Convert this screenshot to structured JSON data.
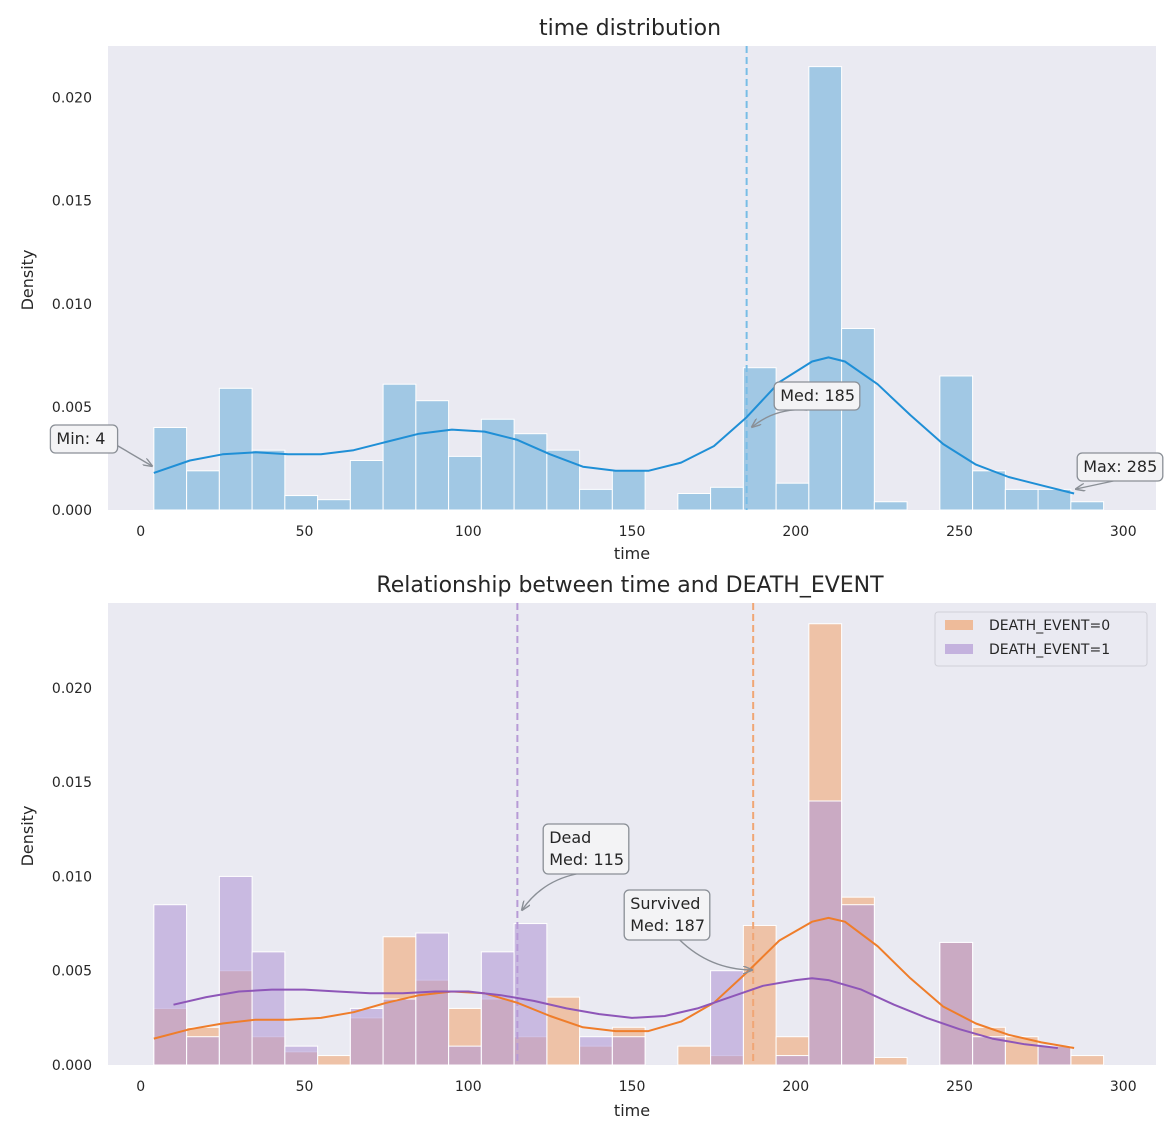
{
  "chart_data": [
    {
      "type": "bar",
      "title": "time distribution",
      "xlabel": "time",
      "ylabel": "Density",
      "xlim": [
        -10,
        310
      ],
      "ylim": [
        0,
        0.0225
      ],
      "xticks": [
        0,
        50,
        100,
        150,
        200,
        250,
        300
      ],
      "xtick_labels": [
        "0",
        "50",
        "100",
        "150",
        "200",
        "250",
        "300"
      ],
      "yticks": [
        0,
        0.005,
        0.01,
        0.015,
        0.02
      ],
      "ytick_labels": [
        "0.000",
        "0.005",
        "0.010",
        "0.015",
        "0.020"
      ],
      "grid": false,
      "bin_edges": [
        4,
        14,
        24,
        34,
        44,
        54,
        64,
        74,
        84,
        94,
        104,
        114,
        124,
        134,
        144,
        154,
        164,
        174,
        184,
        194,
        204,
        214,
        224,
        234,
        244,
        254,
        264,
        274,
        284,
        294
      ],
      "series": [
        {
          "values": [
            0.004,
            0.0019,
            0.0059,
            0.0029,
            0.0007,
            0.0005,
            0.0024,
            0.0061,
            0.0053,
            0.0026,
            0.0044,
            0.0037,
            0.0029,
            0.001,
            0.0019,
            0.0,
            0.0008,
            0.0011,
            0.0069,
            0.0013,
            0.0215,
            0.0088,
            0.0004,
            0.0,
            0.0065,
            0.0019,
            0.001,
            0.001,
            0.0004
          ],
          "color": "#8fbfe0",
          "kde": {
            "x": [
              4,
              15,
              25,
              35,
              45,
              55,
              65,
              75,
              85,
              95,
              105,
              115,
              125,
              135,
              145,
              155,
              165,
              175,
              185,
              195,
              205,
              210,
              215,
              225,
              235,
              245,
              255,
              265,
              275,
              285
            ],
            "y": [
              0.0018,
              0.0024,
              0.0027,
              0.0028,
              0.0027,
              0.0027,
              0.0029,
              0.0033,
              0.0037,
              0.0039,
              0.0038,
              0.0034,
              0.0027,
              0.0021,
              0.0019,
              0.0019,
              0.0023,
              0.0031,
              0.0045,
              0.0062,
              0.0072,
              0.0074,
              0.0072,
              0.0061,
              0.0046,
              0.0032,
              0.0022,
              0.0016,
              0.0012,
              0.0008
            ],
            "color": "#1f8fd6"
          }
        }
      ],
      "median_line": {
        "x": 185,
        "color": "#78bde6"
      },
      "annotations": [
        {
          "text": [
            "Min: 4"
          ],
          "x": 4,
          "y": 0.0021
        },
        {
          "text": [
            "Med: 185"
          ],
          "x": 185,
          "y": 0.0041
        },
        {
          "text": [
            "Max: 285"
          ],
          "x": 285,
          "y": 0.001
        }
      ]
    },
    {
      "type": "bar",
      "title": "Relationship between time and DEATH_EVENT",
      "xlabel": "time",
      "ylabel": "Density",
      "xlim": [
        -10,
        310
      ],
      "ylim": [
        0,
        0.0245
      ],
      "xticks": [
        0,
        50,
        100,
        150,
        200,
        250,
        300
      ],
      "xtick_labels": [
        "0",
        "50",
        "100",
        "150",
        "200",
        "250",
        "300"
      ],
      "yticks": [
        0,
        0.005,
        0.01,
        0.015,
        0.02
      ],
      "ytick_labels": [
        "0.000",
        "0.005",
        "0.010",
        "0.015",
        "0.020"
      ],
      "grid": false,
      "legend": {
        "placement": "top-right",
        "entries": [
          "DEATH_EVENT=0",
          "DEATH_EVENT=1"
        ]
      },
      "bin_edges": [
        4,
        14,
        24,
        34,
        44,
        54,
        64,
        74,
        84,
        94,
        104,
        114,
        124,
        134,
        144,
        154,
        164,
        174,
        184,
        194,
        204,
        214,
        224,
        234,
        244,
        254,
        264,
        274,
        284,
        294
      ],
      "series": [
        {
          "name": "DEATH_EVENT=0",
          "values": [
            0.003,
            0.002,
            0.005,
            0.0015,
            0.0007,
            0.0005,
            0.0025,
            0.0068,
            0.0045,
            0.003,
            0.0035,
            0.0015,
            0.0036,
            0.001,
            0.002,
            0.0,
            0.001,
            0.0005,
            0.0074,
            0.0015,
            0.0234,
            0.0089,
            0.0004,
            0.0,
            0.0065,
            0.002,
            0.0015,
            0.001,
            0.0005
          ],
          "color": "#f0a675",
          "kde": {
            "x": [
              4,
              15,
              25,
              35,
              45,
              55,
              65,
              75,
              85,
              95,
              105,
              115,
              125,
              135,
              145,
              155,
              165,
              175,
              185,
              195,
              205,
              210,
              215,
              225,
              235,
              245,
              255,
              265,
              275,
              285
            ],
            "y": [
              0.0014,
              0.0019,
              0.0022,
              0.0024,
              0.0024,
              0.0025,
              0.0028,
              0.0033,
              0.0037,
              0.0039,
              0.0038,
              0.0033,
              0.0026,
              0.002,
              0.0018,
              0.0018,
              0.0023,
              0.0033,
              0.0049,
              0.0066,
              0.0076,
              0.0078,
              0.0076,
              0.0063,
              0.0046,
              0.0031,
              0.0022,
              0.0016,
              0.0012,
              0.0009
            ],
            "color": "#ef7d2a"
          }
        },
        {
          "name": "DEATH_EVENT=1",
          "values": [
            0.0085,
            0.0015,
            0.01,
            0.006,
            0.001,
            0.0,
            0.003,
            0.0035,
            0.007,
            0.001,
            0.006,
            0.0075,
            0.0,
            0.0015,
            0.0015,
            0.0,
            0.0,
            0.005,
            0.0,
            0.0005,
            0.014,
            0.0085,
            0.0,
            0.0,
            0.0065,
            0.0015,
            0.0,
            0.001,
            0.0
          ],
          "color": "#b39ad6",
          "kde": {
            "x": [
              10,
              20,
              30,
              40,
              50,
              60,
              70,
              80,
              90,
              100,
              110,
              120,
              130,
              140,
              150,
              160,
              170,
              180,
              190,
              200,
              205,
              210,
              220,
              230,
              240,
              250,
              260,
              270,
              280
            ],
            "y": [
              0.0032,
              0.0036,
              0.0039,
              0.004,
              0.004,
              0.0039,
              0.0038,
              0.0038,
              0.0039,
              0.0039,
              0.0037,
              0.0034,
              0.003,
              0.0027,
              0.0025,
              0.0026,
              0.003,
              0.0036,
              0.0042,
              0.0045,
              0.0046,
              0.0045,
              0.004,
              0.0032,
              0.0025,
              0.0019,
              0.0014,
              0.0011,
              0.0009
            ],
            "color": "#8e56b8"
          }
        }
      ],
      "median_lines": [
        {
          "x": 115,
          "color": "#b79ad6"
        },
        {
          "x": 187,
          "color": "#f0a675"
        }
      ],
      "annotations": [
        {
          "text": [
            "Dead",
            "Med: 115"
          ],
          "x": 115,
          "y": 0.008
        },
        {
          "text": [
            "Survived",
            "Med: 187"
          ],
          "x": 185,
          "y": 0.0035
        }
      ]
    }
  ]
}
